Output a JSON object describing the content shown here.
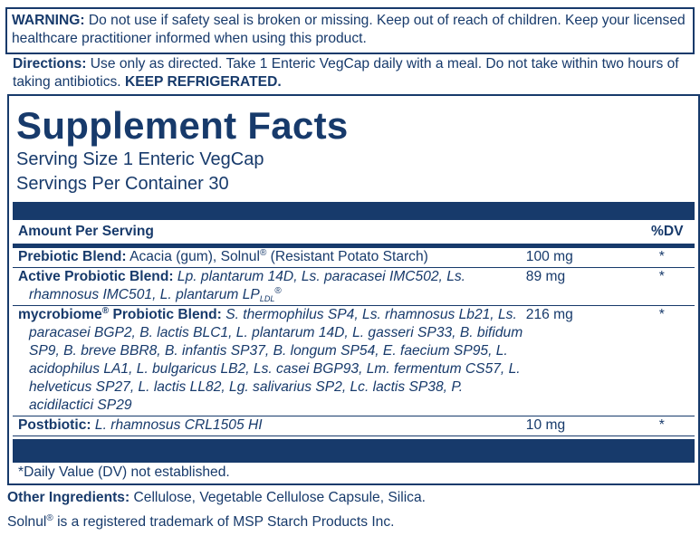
{
  "warning": {
    "label": "WARNING:",
    "text": "Do not use if safety seal is broken or missing. Keep out of reach of children. Keep your licensed healthcare practitioner informed when using this product."
  },
  "directions": {
    "label": "Directions:",
    "text": "Use only as directed. Take 1 Enteric VegCap daily with a meal. Do not take within two hours of taking antibiotics.",
    "emphasis": "KEEP REFRIGERATED."
  },
  "facts": {
    "title": "Supplement Facts",
    "serving_size": "Serving Size 1 Enteric VegCap",
    "servings": "Servings Per Container 30",
    "header": {
      "amount": "Amount Per Serving",
      "dv": "%DV"
    },
    "rows": [
      {
        "label": [
          {
            "text": "Prebiotic Blend:",
            "style": "normal"
          }
        ],
        "description": [
          {
            "text": "Acacia (gum), Solnul",
            "style": "normal"
          },
          {
            "text": "®",
            "style": "sup"
          },
          {
            "text": " (Resistant Potato Starch)",
            "style": "normal"
          }
        ],
        "amount": "100 mg",
        "dv": "*"
      },
      {
        "label": [
          {
            "text": "Active Probiotic Blend:",
            "style": "normal"
          }
        ],
        "description": [
          {
            "text": "Lp. plantarum 14D, Ls. paracasei IMC502, Ls. rhamnosus IMC501, L. plantarum LP",
            "style": "italic"
          },
          {
            "text": "LDL",
            "style": "sub"
          },
          {
            "text": "®",
            "style": "sup"
          }
        ],
        "amount": "89 mg",
        "dv": "*"
      },
      {
        "label": [
          {
            "text": "mycrobiome",
            "style": "normal"
          },
          {
            "text": "®",
            "style": "sup"
          },
          {
            "text": " Probiotic Blend:",
            "style": "normal"
          }
        ],
        "description": [
          {
            "text": "S. thermophilus SP4, Ls. rhamnosus Lb21, Ls. paracasei BGP2, B. lactis BLC1, L. plantarum 14D, L. gasseri SP33, B. bifidum SP9, B. breve BBR8, B. infantis SP37, B. longum SP54, E. faecium SP95, L. acidophilus LA1, L. bulgaricus LB2, Ls. casei BGP93, Lm. fermentum CS57, L. helveticus SP27, L. lactis LL82, Lg. salivarius SP2, Lc. lactis SP38, P. acidilactici SP29",
            "style": "italic"
          }
        ],
        "amount": "216 mg",
        "dv": "*"
      },
      {
        "label": [
          {
            "text": "Postbiotic:",
            "style": "normal"
          }
        ],
        "description": [
          {
            "text": "L. rhamnosus CRL1505 HI",
            "style": "italic"
          }
        ],
        "amount": "10 mg",
        "dv": "*"
      }
    ],
    "footnote": "*Daily Value (DV) not established."
  },
  "other_ingredients": {
    "label": "Other Ingredients:",
    "text": "Cellulose, Vegetable Cellulose Capsule, Silica."
  },
  "trademark": [
    {
      "text": "Solnul",
      "style": "normal"
    },
    {
      "text": "®",
      "style": "sup"
    },
    {
      "text": " is a registered trademark of MSP Starch Products Inc.",
      "style": "normal"
    }
  ]
}
